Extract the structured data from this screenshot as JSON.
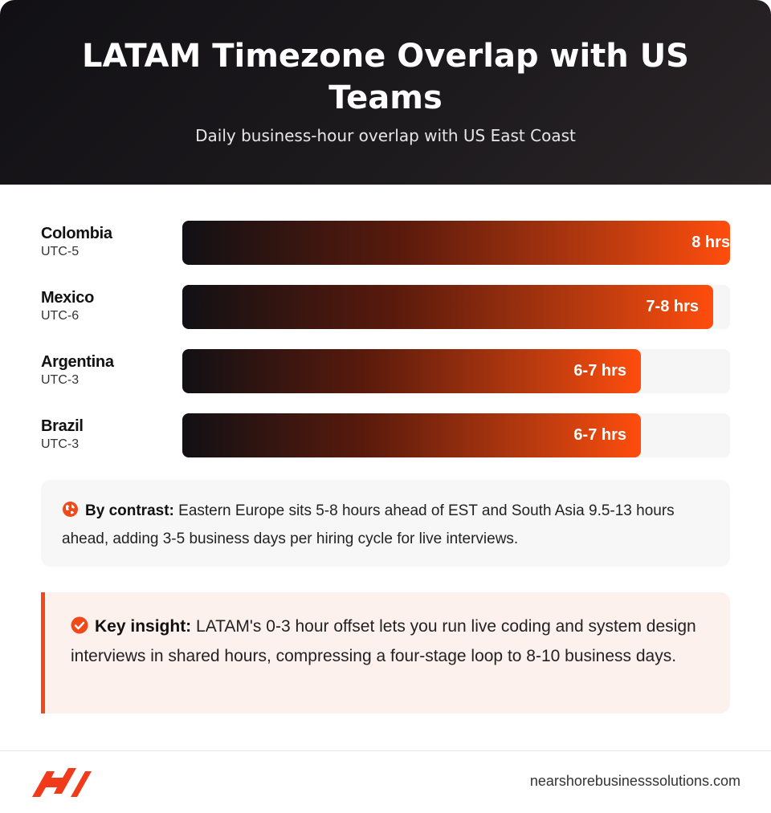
{
  "header": {
    "title": "LATAM Timezone Overlap with US Teams",
    "subtitle": "Daily business-hour overlap with US East Coast"
  },
  "chart_data": {
    "type": "bar",
    "orientation": "horizontal",
    "categories": [
      "Colombia",
      "Mexico",
      "Argentina",
      "Brazil"
    ],
    "sublabels": [
      "UTC-5",
      "UTC-6",
      "UTC-3",
      "UTC-3"
    ],
    "value_labels": [
      "8 hrs",
      "7-8 hrs",
      "6-7 hrs",
      "6-7 hrs"
    ],
    "values": [
      8,
      7.75,
      6.7,
      6.7
    ],
    "xlim": [
      0,
      8
    ],
    "grid": false,
    "legend": "none",
    "bar_gradient": [
      "#111014",
      "#ff4d0d"
    ]
  },
  "contrast": {
    "icon": "globe-icon",
    "label": "By contrast:",
    "text": "Eastern Europe sits 5-8 hours ahead of EST and South Asia 9.5-13 hours ahead, adding 3-5 business days per hiring cycle for live interviews."
  },
  "insight": {
    "icon": "check-circle-icon",
    "label": "Key insight:",
    "text": "LATAM's 0-3 hour offset lets you run live coding and system design interviews in shared hours, compressing a four-stage loop to 8-10 business days."
  },
  "footer": {
    "logo_icon": "brand-logo-icon",
    "domain": "nearshorebusinesssolutions.com"
  },
  "colors": {
    "accent": "#f04a1a",
    "header_bg": "#141216"
  }
}
